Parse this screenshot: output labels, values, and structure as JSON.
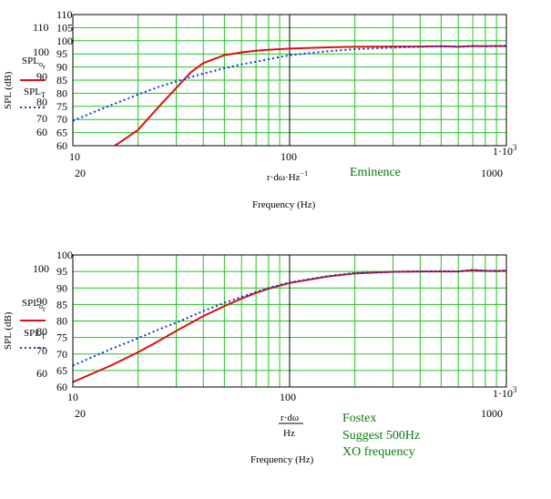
{
  "charts": [
    {
      "id": "top",
      "ylabel": "SPL (dB)",
      "xlabel": "Frequency (Hz)",
      "x_expr": "r·dω·Hz",
      "x_expr_exp": "−1",
      "x_expr_fraction": false,
      "left_y_labels": [
        "110",
        "100",
        "90",
        "80",
        "70",
        "60"
      ],
      "legend": [
        {
          "base": "SPL",
          "sub": "o",
          "subsub": "r"
        },
        {
          "base": "SPL",
          "sub": "T",
          "subsub": ""
        }
      ],
      "annotation": [
        "Eminence"
      ],
      "x_tick_upper": {
        "left": "10",
        "mid": "100",
        "right_base": "1·10",
        "right_exp": "3"
      },
      "x_tick_lower": {
        "left": "20",
        "right": "1000"
      }
    },
    {
      "id": "bottom",
      "ylabel": "SPL (dB)",
      "xlabel": "Frequency (Hz)",
      "x_expr_num": "r·dω",
      "x_expr_den": "Hz",
      "x_expr_fraction": true,
      "left_y_labels": [
        "100",
        "90",
        "80",
        "70",
        "60"
      ],
      "legend": [
        {
          "base": "SPL",
          "sub": "o",
          "subsub": "r"
        },
        {
          "base": "SPL",
          "sub": "T",
          "subsub": ""
        }
      ],
      "annotation": [
        "Fostex",
        "Suggest 500Hz",
        "XO frequency"
      ],
      "x_tick_upper": {
        "left": "10",
        "mid": "100",
        "right_base": "1·10",
        "right_exp": "3"
      },
      "x_tick_lower": {
        "left": "20",
        "right": "1000"
      }
    }
  ],
  "chart_data": [
    {
      "type": "line",
      "xscale": "log",
      "xlim": [
        10,
        1000
      ],
      "ylim": [
        60,
        110
      ],
      "ytick_labels": [
        "110",
        "105",
        "100",
        "95",
        "90",
        "85",
        "80",
        "75",
        "70",
        "65",
        "60"
      ],
      "grid": true,
      "series": [
        {
          "legend_label": "SPLor",
          "color": "#dd1111",
          "style": "solid",
          "x": [
            15,
            20,
            25,
            30,
            35,
            40,
            50,
            60,
            70,
            80,
            100,
            150,
            200,
            300,
            400,
            500,
            600,
            700,
            800,
            900,
            1000
          ],
          "y": [
            59,
            66,
            75,
            82,
            88,
            91.5,
            94.5,
            95.6,
            96.2,
            96.6,
            97,
            97.5,
            97.7,
            97.8,
            97.8,
            97.9,
            97.7,
            98,
            97.9,
            98,
            98
          ]
        },
        {
          "legend_label": "SPLT",
          "color": "#1133dd",
          "style": "dotted",
          "x": [
            10,
            15,
            20,
            25,
            30,
            40,
            50,
            60,
            70,
            80,
            100,
            150,
            200,
            300,
            400,
            500,
            600,
            700,
            800,
            900,
            1000
          ],
          "y": [
            69.5,
            75.5,
            79.5,
            82.5,
            84.5,
            87.5,
            89.5,
            91,
            92,
            93,
            94.5,
            96,
            96.8,
            97.4,
            97.7,
            97.9,
            97.8,
            98.1,
            97.9,
            98.1,
            98.1
          ]
        }
      ]
    },
    {
      "type": "line",
      "xscale": "log",
      "xlim": [
        10,
        1000
      ],
      "ylim": [
        60,
        100
      ],
      "ytick_labels": [
        "100",
        "95",
        "90",
        "85",
        "80",
        "75",
        "70",
        "65",
        "60"
      ],
      "grid": true,
      "series": [
        {
          "legend_label": "SPLor",
          "color": "#dd1111",
          "style": "solid",
          "x": [
            10,
            15,
            20,
            25,
            30,
            40,
            50,
            60,
            70,
            80,
            100,
            150,
            200,
            300,
            400,
            500,
            600,
            700,
            800,
            900,
            1000
          ],
          "y": [
            61.5,
            66.5,
            70.5,
            74,
            77,
            81.5,
            84.5,
            86.8,
            88.5,
            89.8,
            91.5,
            93.5,
            94.4,
            94.9,
            95,
            95,
            95,
            95.4,
            95.2,
            95.1,
            95.2
          ]
        },
        {
          "legend_label": "SPLT",
          "color": "#1133dd",
          "style": "dotted",
          "x": [
            10,
            15,
            20,
            25,
            30,
            40,
            50,
            60,
            70,
            80,
            100,
            150,
            200,
            300,
            400,
            500,
            600,
            700,
            800,
            900,
            1000
          ],
          "y": [
            66.5,
            71.5,
            74.8,
            77.5,
            79.5,
            83,
            85.5,
            87.3,
            88.8,
            90,
            91.7,
            93.6,
            94.5,
            94.9,
            95,
            95.1,
            95,
            95.5,
            95.2,
            95.2,
            95.3
          ]
        }
      ]
    }
  ]
}
